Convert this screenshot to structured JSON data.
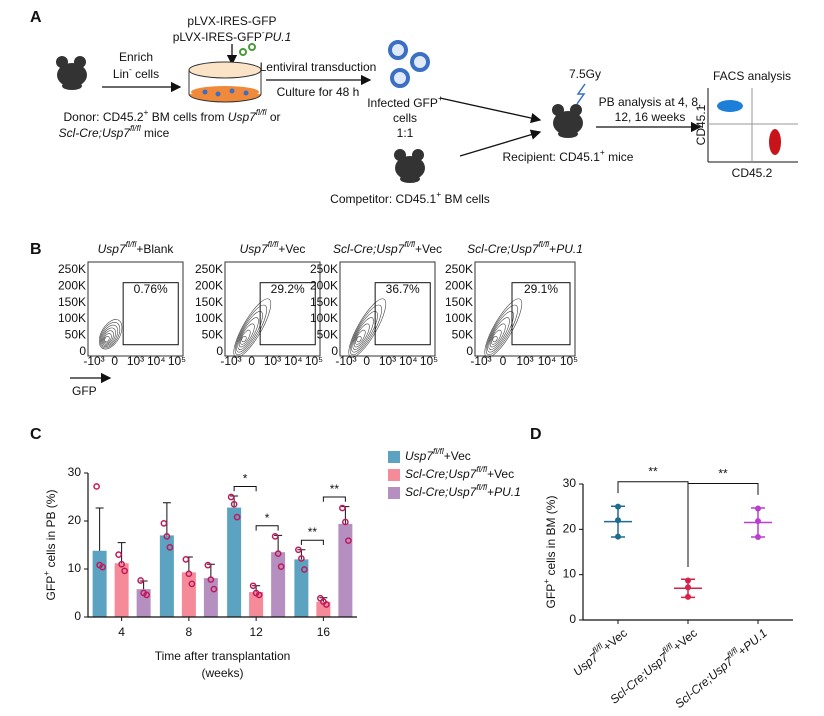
{
  "panel_a": {
    "label": "A",
    "vectors": [
      "pLVX-IRES-GFP",
      "pLVX-IRES-GFP-PU.1"
    ],
    "enrich": [
      "Enrich",
      "Lin- cells"
    ],
    "transduction": [
      "Lentiviral transduction",
      "Culture for 48 h"
    ],
    "infected": [
      "Infected GFP+",
      "cells",
      "1:1"
    ],
    "donor": [
      "Donor: CD45.2+ BM cells from Usp7fl/fl or",
      "Scl-Cre;Usp7fl/fl mice"
    ],
    "dose": "7.5Gy",
    "pb_analysis": [
      "PB analysis at 4, 8,",
      "12, 16 weeks"
    ],
    "recipient": "Recipient: CD45.1+ mice",
    "competitor": "Competitor: CD45.1+ BM cells",
    "facs": {
      "title": "FACS analysis",
      "y_axis": "CD45.1",
      "x_axis": "CD45.2"
    }
  },
  "panel_b": {
    "label": "B",
    "plots": [
      {
        "title": "Usp7fl/fl+Blank",
        "gate": "0.76%"
      },
      {
        "title": "Usp7fl/fl+Vec",
        "gate": "29.2%"
      },
      {
        "title": "Scl-Cre;Usp7fl/fl+Vec",
        "gate": "36.7%"
      },
      {
        "title": "Scl-Cre;Usp7fl/fl+PU.1",
        "gate": "29.1%"
      }
    ],
    "yticks": [
      "250K",
      "200K",
      "150K",
      "100K",
      "50K",
      "0"
    ],
    "xticks": [
      "-10³",
      "0",
      "10³",
      "10⁴",
      "10⁵"
    ],
    "xlabel": "GFP"
  },
  "chart_data": [
    {
      "type": "bar",
      "panel": "C",
      "categories": [
        "4",
        "8",
        "12",
        "16"
      ],
      "xlabel": [
        "Time after transplantation",
        "(weeks)"
      ],
      "ylabel": "GFP+ cells  in PB (%)",
      "ylim": [
        0,
        30
      ],
      "yticks": [
        0,
        10,
        20,
        30
      ],
      "series": [
        {
          "name": "Usp7fl/fl+Vec",
          "color": "#5ba3c0",
          "values": [
            13.8,
            17.0,
            22.8,
            12.0
          ],
          "errors": [
            8.9,
            6.8,
            2.4,
            2.0
          ],
          "points": [
            [
              27.2,
              10.8,
              10.4
            ],
            [
              19.5,
              16.8,
              14.5
            ],
            [
              25.0,
              23.5,
              20.8
            ],
            [
              14.0,
              12.2,
              9.9
            ]
          ]
        },
        {
          "name": "Scl-Cre;Usp7fl/fl+Vec",
          "color": "#f58a98",
          "values": [
            11.2,
            9.3,
            5.2,
            3.2
          ],
          "errors": [
            4.3,
            3.2,
            1.3,
            0.8
          ],
          "points": [
            [
              13.0,
              11.0,
              9.6
            ],
            [
              12.0,
              9.0,
              6.9
            ],
            [
              6.5,
              5.0,
              4.6
            ],
            [
              3.9,
              3.2,
              2.6
            ]
          ]
        },
        {
          "name": "Scl-Cre;Usp7fl/fl+PU.1",
          "color": "#b58fc0",
          "values": [
            5.8,
            8.1,
            13.5,
            19.4
          ],
          "errors": [
            1.7,
            2.9,
            3.5,
            3.6
          ],
          "points": [
            [
              7.6,
              5.0,
              4.6
            ],
            [
              10.8,
              7.8,
              5.8
            ],
            [
              16.8,
              13.2,
              10.5
            ],
            [
              22.7,
              19.8,
              15.9
            ]
          ]
        }
      ],
      "annotations": [
        {
          "text": "*",
          "category": 2,
          "between": [
            0,
            1
          ]
        },
        {
          "text": "*",
          "category": 2,
          "between": [
            1,
            2
          ]
        },
        {
          "text": "**",
          "category": 3,
          "between": [
            0,
            1
          ]
        },
        {
          "text": "**",
          "category": 3,
          "between": [
            1,
            2
          ]
        }
      ]
    },
    {
      "type": "dot",
      "panel": "D",
      "categories": [
        "Usp7fl/fl+Vec",
        "Scl-Cre;Usp7fl/fl+Vec",
        "Scl-Cre;Usp7fl/fl+PU.1"
      ],
      "colors": [
        "#1f6b8f",
        "#d6224a",
        "#b93fcf"
      ],
      "ylabel": "GFP+ cells  in BM (%)",
      "ylim": [
        0,
        30
      ],
      "yticks": [
        0,
        10,
        20,
        30
      ],
      "values": [
        21.7,
        7.0,
        21.5
      ],
      "errors": [
        3.4,
        2.0,
        3.2
      ],
      "points": [
        [
          25.0,
          22.0,
          18.4
        ],
        [
          8.7,
          7.2,
          5.1
        ],
        [
          24.6,
          21.8,
          18.3
        ]
      ],
      "annotations": [
        {
          "text": "**",
          "between": [
            0,
            1
          ]
        },
        {
          "text": "**",
          "between": [
            1,
            2
          ]
        }
      ]
    }
  ]
}
